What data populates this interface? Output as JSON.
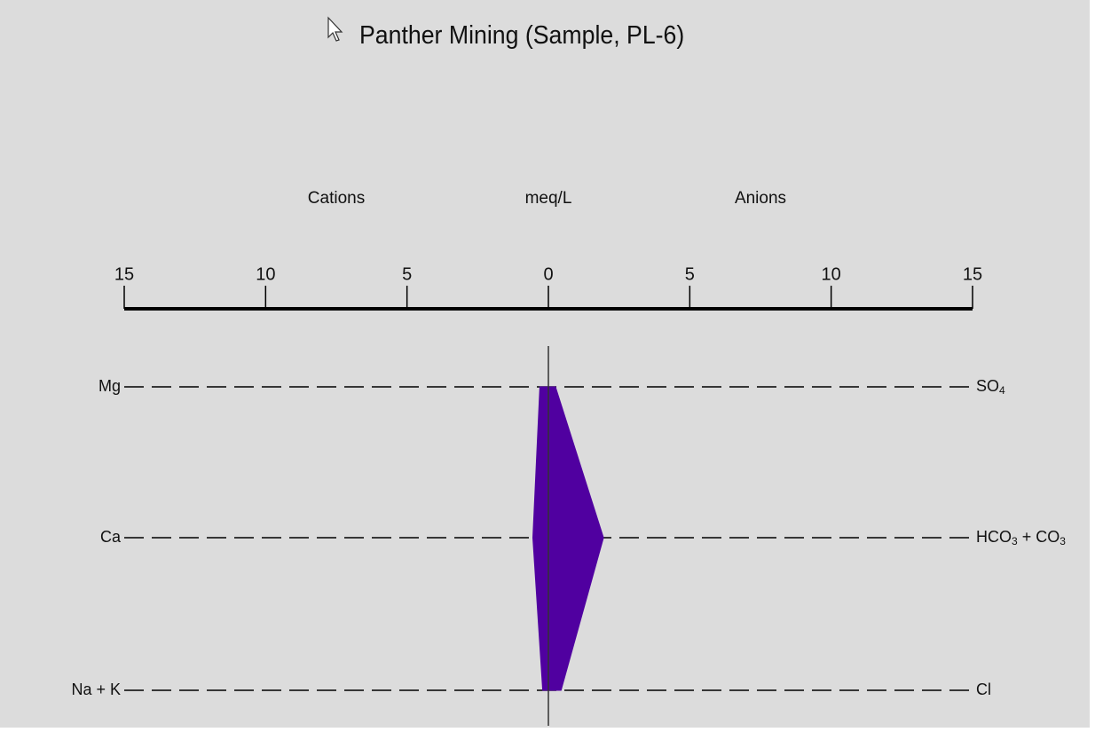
{
  "chart_data": {
    "type": "stiff",
    "title": "Panther Mining (Sample, PL-6)",
    "header_labels": {
      "left": "Cations",
      "center": "meq/L",
      "right": "Anions"
    },
    "axis": {
      "xlim": [
        -15,
        15
      ],
      "ticks": [
        -15,
        -10,
        -5,
        0,
        5,
        10,
        15
      ],
      "tick_labels": [
        "15",
        "10",
        "5",
        "0",
        "5",
        "10",
        "15"
      ]
    },
    "rows": [
      {
        "cation": "Mg",
        "anion": "SO",
        "anion_sub": "4",
        "cation_meq": 0.3,
        "anion_meq": 0.25
      },
      {
        "cation": "Ca",
        "anion": "HCO",
        "anion_sub": "3",
        "anion_mid": " + CO",
        "anion_sub2": "3",
        "cation_meq": 0.55,
        "anion_meq": 1.95
      },
      {
        "cation": "Na + K",
        "anion": "Cl",
        "anion_sub": "",
        "cation_meq": 0.2,
        "anion_meq": 0.45
      }
    ],
    "fill_color": "#5000a0",
    "line_color": "#000000",
    "background": "#dcdcdc"
  }
}
